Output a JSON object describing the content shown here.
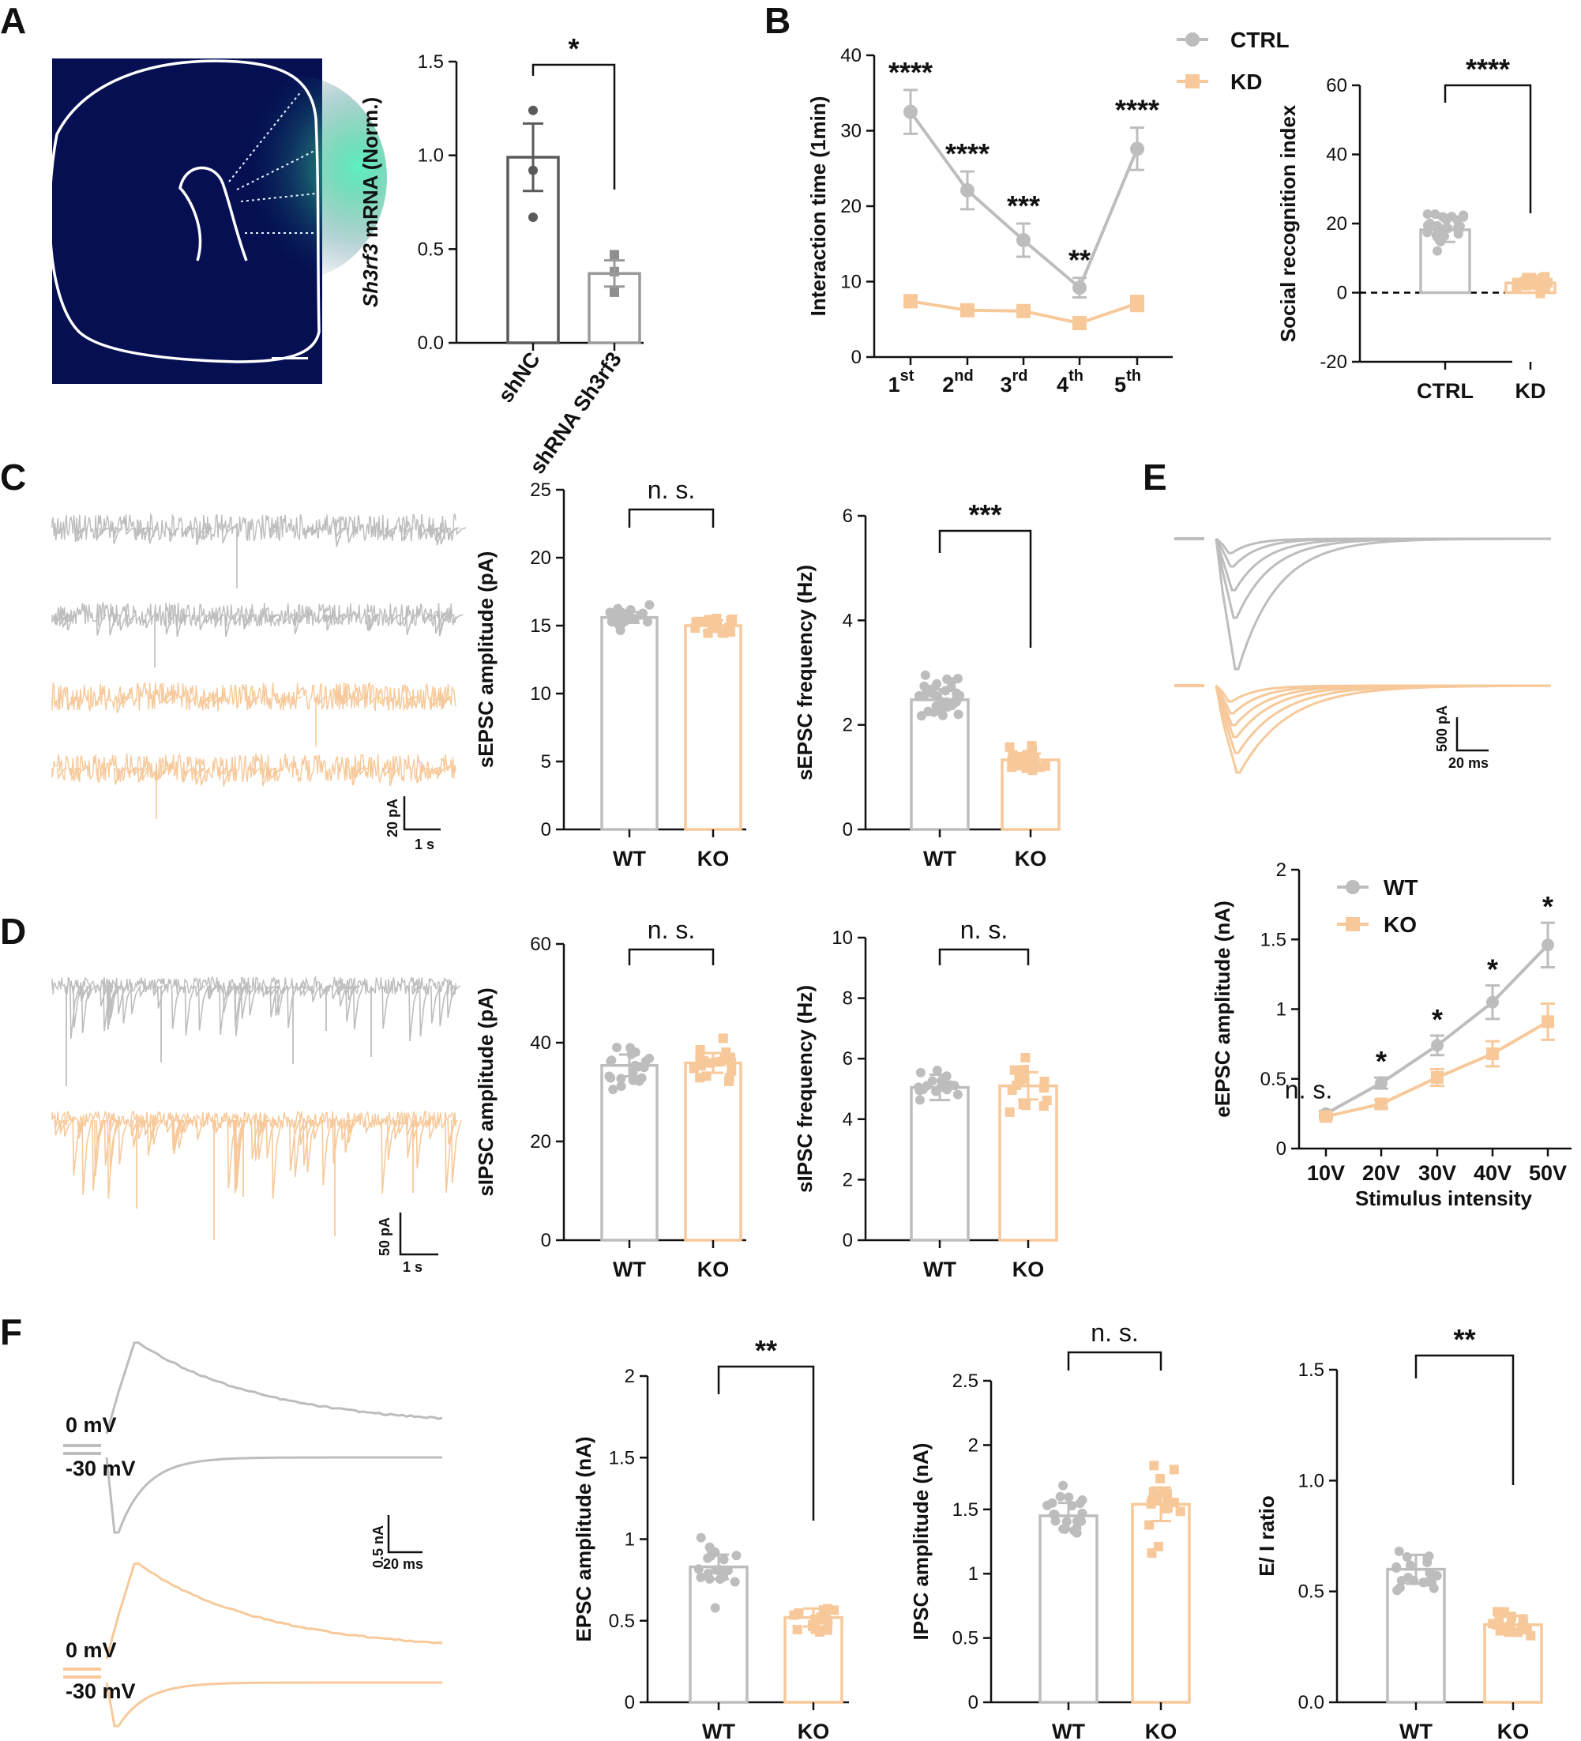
{
  "figure": {
    "panel_labels": [
      "A",
      "B",
      "C",
      "D",
      "E",
      "F"
    ],
    "colors": {
      "wt": "#bdbdbd",
      "ko": "#f7c99a",
      "dark": "#5a5a5a",
      "axis": "#111111"
    }
  },
  "panelA": {
    "image": {
      "background": "#04083d",
      "outline": "#ffffff",
      "signal": "#3fe0b0"
    },
    "chart": {
      "title": "",
      "type": "bar",
      "xlabel": "",
      "ylabel_italic": "Sh3rf3",
      "ylabel_rest": " mRNA (Norm.)",
      "ylim": [
        0,
        1.5
      ],
      "yticks": [
        "0.0",
        "0.5",
        "1.0",
        "1.5"
      ],
      "categories": [
        "shNC",
        "shRNA Sh3rf3"
      ],
      "values": [
        0.99,
        0.37
      ],
      "errors": [
        0.18,
        0.07
      ],
      "points": [
        [
          1.24,
          0.92,
          0.67
        ],
        [
          0.47,
          0.38,
          0.27
        ]
      ],
      "significance": "*"
    }
  },
  "panelB": {
    "line": {
      "title": "",
      "type": "line",
      "xlabel": "",
      "ylabel": "Interaction time (1min)",
      "ylim": [
        0,
        40
      ],
      "yticks": [
        "0",
        "10",
        "20",
        "30",
        "40"
      ],
      "x": [
        "1st",
        "2nd",
        "3rd",
        "4th",
        "5th"
      ],
      "x_base": [
        "1",
        "2",
        "3",
        "4",
        "5"
      ],
      "x_sup": [
        "st",
        "nd",
        "rd",
        "th",
        "th"
      ],
      "series": [
        {
          "name": "CTRL",
          "values": [
            32.5,
            22.1,
            15.5,
            9.2,
            27.6
          ],
          "errors": [
            2.9,
            2.5,
            2.2,
            1.3,
            2.8
          ]
        },
        {
          "name": "KD",
          "values": [
            7.4,
            6.2,
            6.1,
            4.5,
            7.1
          ],
          "errors": [
            0.8,
            0.6,
            0.7,
            0.6,
            1.0
          ]
        }
      ],
      "significance": [
        "****",
        "****",
        "***",
        "**",
        "****"
      ]
    },
    "index": {
      "title": "",
      "type": "bar",
      "xlabel": "",
      "ylabel": "Social recognition index",
      "ylim": [
        -20,
        60
      ],
      "yticks": [
        "-20",
        "0",
        "20",
        "40",
        "60"
      ],
      "categories": [
        "CTRL",
        "KD"
      ],
      "values": [
        18.2,
        2.8
      ],
      "errors": [
        3.5,
        1.2
      ],
      "significance": "****"
    }
  },
  "panelC": {
    "scalebar": {
      "y": "20 pA",
      "x": "1 s"
    },
    "amplitude": {
      "title": "",
      "type": "bar",
      "xlabel": "",
      "ylabel": "sEPSC amplitude (pA)",
      "ylim": [
        0,
        25
      ],
      "yticks": [
        "0",
        "5",
        "10",
        "15",
        "20",
        "25"
      ],
      "categories": [
        "WT",
        "KO"
      ],
      "values": [
        15.6,
        15.0
      ],
      "errors": [
        0.4,
        0.4
      ],
      "significance": "n. s."
    },
    "frequency": {
      "title": "",
      "type": "bar",
      "xlabel": "",
      "ylabel": "sEPSC frequency (Hz)",
      "ylim": [
        0,
        6
      ],
      "yticks": [
        "0",
        "2",
        "4",
        "6"
      ],
      "categories": [
        "WT",
        "KO"
      ],
      "values": [
        2.48,
        1.33
      ],
      "errors": [
        0.2,
        0.12
      ],
      "significance": "***"
    }
  },
  "panelD": {
    "scalebar": {
      "y": "50 pA",
      "x": "1 s"
    },
    "amplitude": {
      "title": "",
      "type": "bar",
      "xlabel": "",
      "ylabel": "sIPSC amplitude (pA)",
      "ylim": [
        0,
        60
      ],
      "yticks": [
        "0",
        "20",
        "40",
        "60"
      ],
      "categories": [
        "WT",
        "KO"
      ],
      "values": [
        35.4,
        35.9
      ],
      "errors": [
        2.2,
        2.0
      ],
      "significance": "n. s."
    },
    "frequency": {
      "title": "",
      "type": "bar",
      "xlabel": "",
      "ylabel": "sIPSC frequency (Hz)",
      "ylim": [
        0,
        10
      ],
      "yticks": [
        "0",
        "2",
        "4",
        "6",
        "8",
        "10"
      ],
      "categories": [
        "WT",
        "KO"
      ],
      "values": [
        5.05,
        5.1
      ],
      "errors": [
        0.42,
        0.45
      ],
      "significance": "n. s."
    }
  },
  "panelE": {
    "scalebar": {
      "y": "500 pA",
      "x": "20 ms"
    },
    "line": {
      "title": "",
      "type": "line",
      "xlabel": "Stimulus intensity",
      "ylabel": "eEPSC amplitude (nA)",
      "ylim": [
        0,
        2
      ],
      "yticks": [
        "0",
        "0.5",
        "1",
        "1.5",
        "2"
      ],
      "x": [
        "10V",
        "20V",
        "30V",
        "40V",
        "50V"
      ],
      "series": [
        {
          "name": "WT",
          "values": [
            0.25,
            0.47,
            0.74,
            1.05,
            1.46
          ],
          "errors": [
            0.02,
            0.04,
            0.07,
            0.12,
            0.16
          ]
        },
        {
          "name": "KO",
          "values": [
            0.23,
            0.32,
            0.51,
            0.68,
            0.91
          ],
          "errors": [
            0.02,
            0.03,
            0.06,
            0.09,
            0.13
          ]
        }
      ],
      "significance": [
        "n. s.",
        "*",
        "*",
        "*",
        "*"
      ]
    }
  },
  "panelF": {
    "trace_labels": [
      "0 mV",
      "-30 mV"
    ],
    "scalebar": {
      "y": "0.5 nA",
      "x": "20 ms"
    },
    "epsc": {
      "title": "",
      "type": "bar",
      "xlabel": "",
      "ylabel": "EPSC amplitude (nA)",
      "ylim": [
        0,
        2
      ],
      "yticks": [
        "0",
        "0.5",
        "1",
        "1.5",
        "2"
      ],
      "categories": [
        "WT",
        "KO"
      ],
      "values": [
        0.83,
        0.52
      ],
      "errors": [
        0.075,
        0.055
      ],
      "significance": "**"
    },
    "ipsc": {
      "title": "",
      "type": "bar",
      "xlabel": "",
      "ylabel": "IPSC amplitude (nA)",
      "ylim": [
        0,
        2.5
      ],
      "yticks": [
        "0",
        "0.5",
        "1",
        "1.5",
        "2",
        "2.5"
      ],
      "categories": [
        "WT",
        "KO"
      ],
      "values": [
        1.45,
        1.54
      ],
      "errors": [
        0.1,
        0.13
      ],
      "significance": "n. s."
    },
    "ei": {
      "title": "",
      "type": "bar",
      "xlabel": "",
      "ylabel": "E/ I ratio",
      "ylim": [
        0,
        1.5
      ],
      "yticks": [
        "0.0",
        "0.5",
        "1.0",
        "1.5"
      ],
      "categories": [
        "WT",
        "KO"
      ],
      "values": [
        0.6,
        0.35
      ],
      "errors": [
        0.065,
        0.04
      ],
      "significance": "**"
    }
  }
}
